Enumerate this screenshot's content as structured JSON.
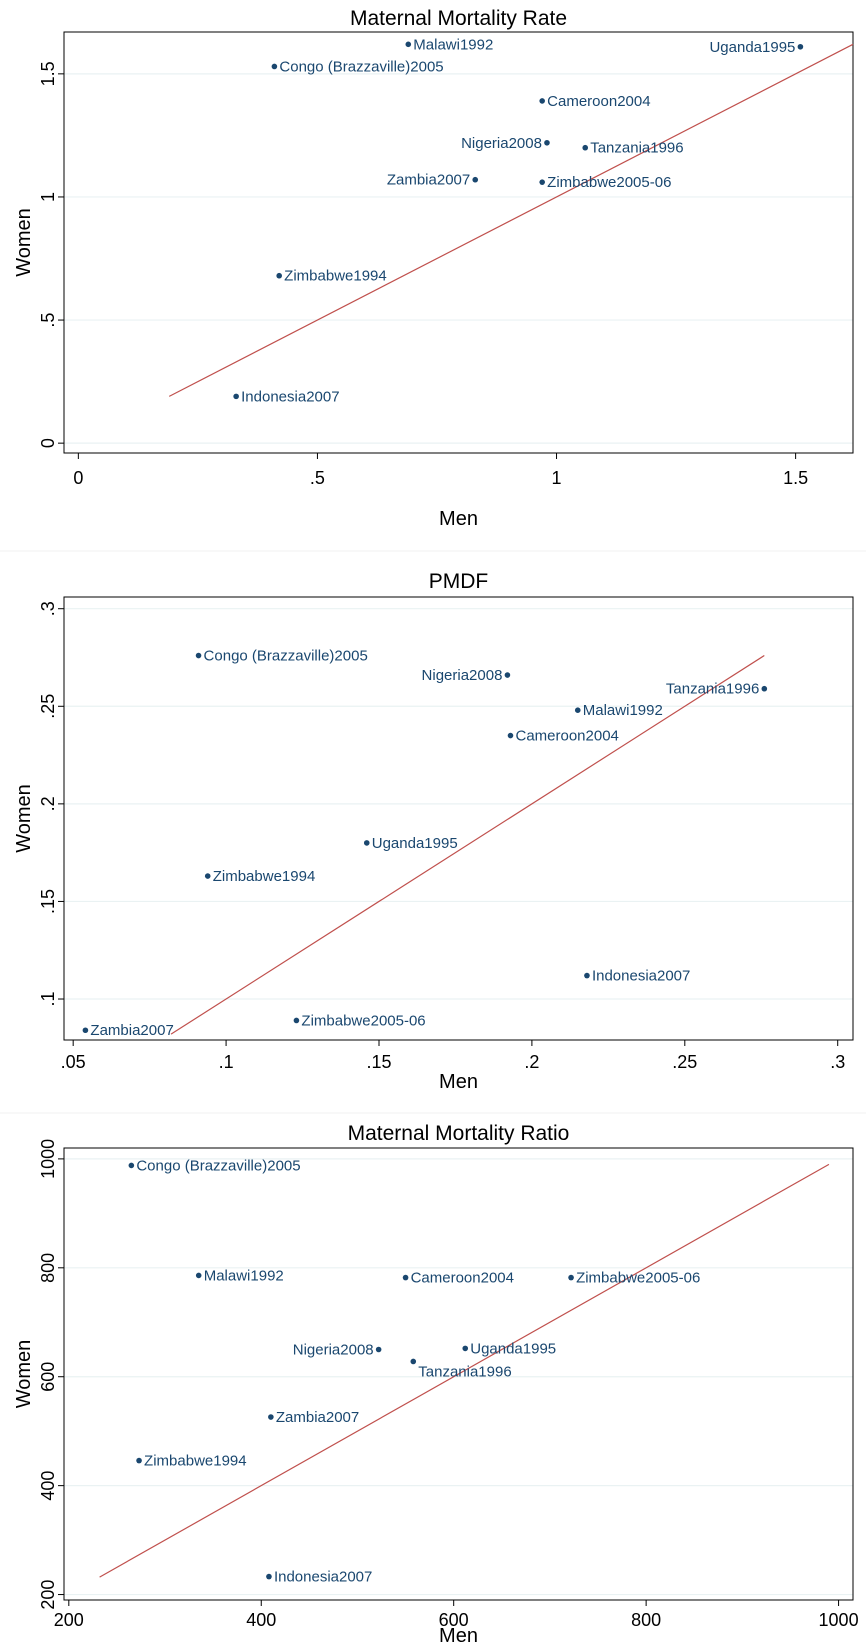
{
  "colors": {
    "marker": "#1a476f",
    "line": "#c0504d",
    "grid": "#eaf2f3",
    "background": "#ffffff"
  },
  "chart_data": [
    {
      "type": "scatter",
      "title": "Maternal Mortality Rate",
      "xlabel": "Men",
      "ylabel": "Women",
      "xlim": [
        -0.03,
        1.62
      ],
      "ylim": [
        -0.04,
        1.67
      ],
      "xticks": [
        {
          "value": 0,
          "label": "0"
        },
        {
          "value": 0.5,
          "label": ".5"
        },
        {
          "value": 1,
          "label": "1"
        },
        {
          "value": 1.5,
          "label": "1.5"
        }
      ],
      "yticks": [
        {
          "value": 0,
          "label": "0"
        },
        {
          "value": 0.5,
          "label": ".5"
        },
        {
          "value": 1,
          "label": "1"
        },
        {
          "value": 1.5,
          "label": "1.5"
        }
      ],
      "grid": true,
      "reference_line": {
        "x": [
          0.19,
          1.62
        ],
        "y": [
          0.19,
          1.62
        ]
      },
      "points": [
        {
          "label": "Malawi1992",
          "x": 0.69,
          "y": 1.62,
          "label_side": "right"
        },
        {
          "label": "Uganda1995",
          "x": 1.51,
          "y": 1.61,
          "label_side": "left"
        },
        {
          "label": "Congo (Brazzaville)2005",
          "x": 0.41,
          "y": 1.53,
          "label_side": "right"
        },
        {
          "label": "Cameroon2004",
          "x": 0.97,
          "y": 1.39,
          "label_side": "right"
        },
        {
          "label": "Nigeria2008",
          "x": 0.98,
          "y": 1.22,
          "label_side": "left"
        },
        {
          "label": "Tanzania1996",
          "x": 1.06,
          "y": 1.2,
          "label_side": "right"
        },
        {
          "label": "Zambia2007",
          "x": 0.83,
          "y": 1.07,
          "label_side": "left"
        },
        {
          "label": "Zimbabwe2005-06",
          "x": 0.97,
          "y": 1.06,
          "label_side": "right"
        },
        {
          "label": "Zimbabwe1994",
          "x": 0.42,
          "y": 0.68,
          "label_side": "right"
        },
        {
          "label": "Indonesia2007",
          "x": 0.33,
          "y": 0.19,
          "label_side": "right"
        }
      ]
    },
    {
      "type": "scatter",
      "title": "PMDF",
      "xlabel": "Men",
      "ylabel": "Women",
      "xlim": [
        0.047,
        0.305
      ],
      "ylim": [
        0.079,
        0.306
      ],
      "xticks": [
        {
          "value": 0.05,
          "label": ".05"
        },
        {
          "value": 0.1,
          "label": ".1"
        },
        {
          "value": 0.15,
          "label": ".15"
        },
        {
          "value": 0.2,
          "label": ".2"
        },
        {
          "value": 0.25,
          "label": ".25"
        },
        {
          "value": 0.3,
          "label": ".3"
        }
      ],
      "yticks": [
        {
          "value": 0.1,
          "label": ".1"
        },
        {
          "value": 0.15,
          "label": ".15"
        },
        {
          "value": 0.2,
          "label": ".2"
        },
        {
          "value": 0.25,
          "label": ".25"
        },
        {
          "value": 0.3,
          "label": ".3"
        }
      ],
      "grid": true,
      "reference_line": {
        "x": [
          0.082,
          0.276
        ],
        "y": [
          0.082,
          0.276
        ]
      },
      "points": [
        {
          "label": "Congo (Brazzaville)2005",
          "x": 0.091,
          "y": 0.276,
          "label_side": "right"
        },
        {
          "label": "Nigeria2008",
          "x": 0.192,
          "y": 0.266,
          "label_side": "left"
        },
        {
          "label": "Tanzania1996",
          "x": 0.276,
          "y": 0.259,
          "label_side": "left"
        },
        {
          "label": "Malawi1992",
          "x": 0.215,
          "y": 0.248,
          "label_side": "right"
        },
        {
          "label": "Cameroon2004",
          "x": 0.193,
          "y": 0.235,
          "label_side": "right"
        },
        {
          "label": "Uganda1995",
          "x": 0.146,
          "y": 0.18,
          "label_side": "right"
        },
        {
          "label": "Zimbabwe1994",
          "x": 0.094,
          "y": 0.163,
          "label_side": "right"
        },
        {
          "label": "Indonesia2007",
          "x": 0.218,
          "y": 0.112,
          "label_side": "right"
        },
        {
          "label": "Zimbabwe2005-06",
          "x": 0.123,
          "y": 0.089,
          "label_side": "right"
        },
        {
          "label": "Zambia2007",
          "x": 0.054,
          "y": 0.084,
          "label_side": "right"
        }
      ]
    },
    {
      "type": "scatter",
      "title": "Maternal Mortality Ratio",
      "xlabel": "Men",
      "ylabel": "Women",
      "xlim": [
        195,
        1015
      ],
      "ylim": [
        190,
        1020
      ],
      "xticks": [
        {
          "value": 200,
          "label": "200"
        },
        {
          "value": 400,
          "label": "400"
        },
        {
          "value": 600,
          "label": "600"
        },
        {
          "value": 800,
          "label": "800"
        },
        {
          "value": 1000,
          "label": "1000"
        }
      ],
      "yticks": [
        {
          "value": 200,
          "label": "200"
        },
        {
          "value": 400,
          "label": "400"
        },
        {
          "value": 600,
          "label": "600"
        },
        {
          "value": 800,
          "label": "800"
        },
        {
          "value": 1000,
          "label": "1000"
        }
      ],
      "grid": true,
      "reference_line": {
        "x": [
          232,
          990
        ],
        "y": [
          232,
          990
        ]
      },
      "points": [
        {
          "label": "Congo (Brazzaville)2005",
          "x": 265,
          "y": 988,
          "label_side": "right"
        },
        {
          "label": "Malawi1992",
          "x": 335,
          "y": 786,
          "label_side": "right"
        },
        {
          "label": "Cameroon2004",
          "x": 550,
          "y": 782,
          "label_side": "right"
        },
        {
          "label": "Zimbabwe2005-06",
          "x": 722,
          "y": 782,
          "label_side": "right"
        },
        {
          "label": "Nigeria2008",
          "x": 522,
          "y": 650,
          "label_side": "left"
        },
        {
          "label": "Uganda1995",
          "x": 612,
          "y": 652,
          "label_side": "right"
        },
        {
          "label": "Tanzania1996",
          "x": 558,
          "y": 628,
          "label_side": "below-right"
        },
        {
          "label": "Zambia2007",
          "x": 410,
          "y": 526,
          "label_side": "right"
        },
        {
          "label": "Zimbabwe1994",
          "x": 273,
          "y": 446,
          "label_side": "right"
        },
        {
          "label": "Indonesia2007",
          "x": 408,
          "y": 233,
          "label_side": "right"
        }
      ]
    }
  ]
}
